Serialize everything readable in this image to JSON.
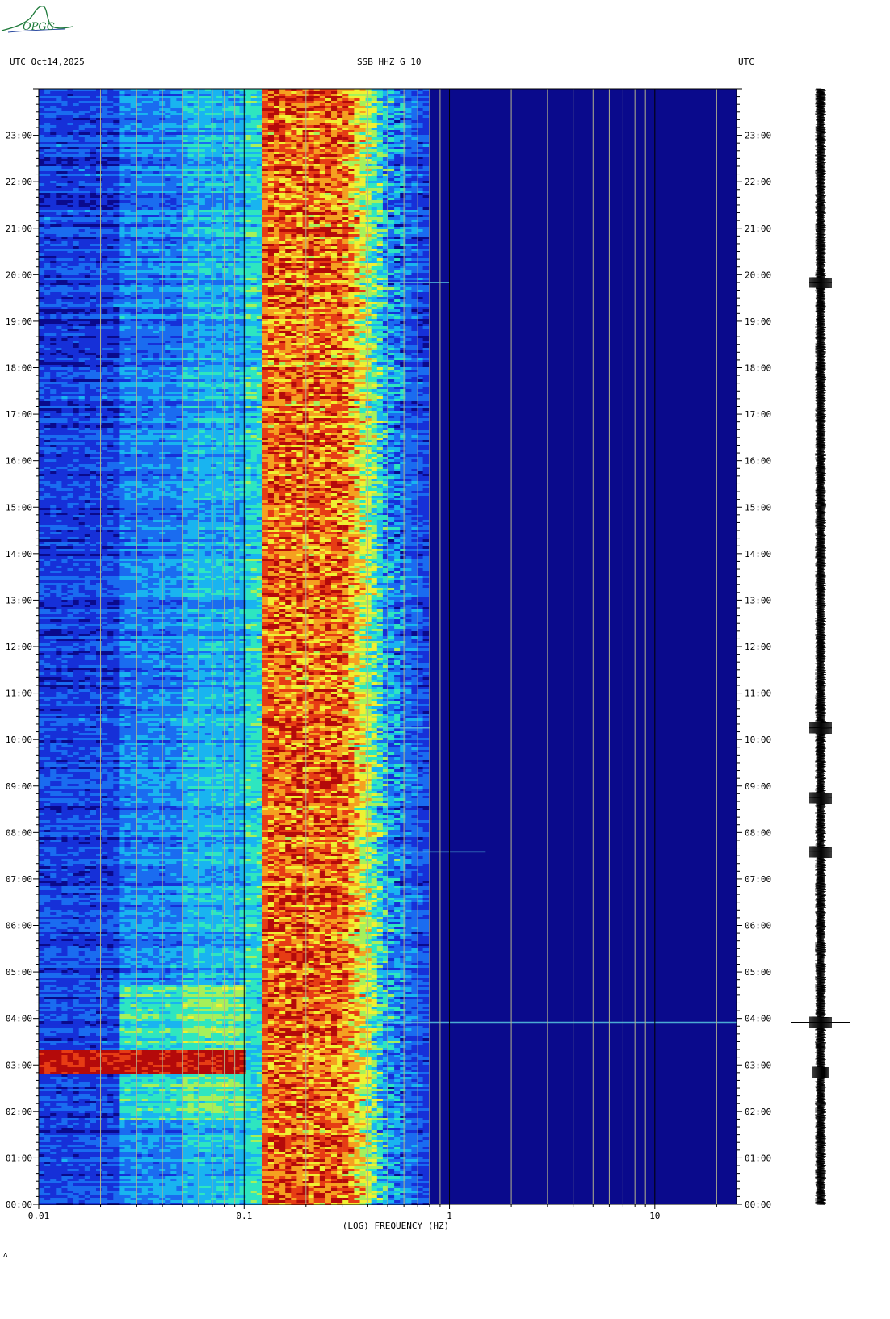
{
  "header": {
    "logo_text": "OPGC",
    "left_label": "UTC  Oct14,2025",
    "center_label": "SSB HHZ G 10",
    "right_label": "UTC"
  },
  "colors": {
    "background": "#ffffff",
    "colormap": [
      "#0a0a8c",
      "#1630d8",
      "#1a6cf0",
      "#19b4f0",
      "#2ee6c0",
      "#a6f05a",
      "#f0f032",
      "#f5a020",
      "#e63c14",
      "#b40a0a"
    ],
    "gridline": "#b4b48c",
    "decade_line": "#000000",
    "seismogram": "#000000"
  },
  "chart_data": {
    "type": "heatmap",
    "title": "SSB HHZ G 10",
    "xlabel": "(LOG) FREQUENCY (HZ)",
    "ylabel": "UTC",
    "x_scale": "log",
    "xlim": [
      0.01,
      25
    ],
    "x_ticks": [
      "0.01",
      "0.1",
      "1",
      "10"
    ],
    "x_tick_values": [
      0.01,
      0.1,
      1,
      10
    ],
    "x_gridlines": [
      0.02,
      0.03,
      0.04,
      0.05,
      0.06,
      0.07,
      0.08,
      0.09,
      0.2,
      0.3,
      0.4,
      0.5,
      0.6,
      0.7,
      0.8,
      0.9,
      2,
      3,
      4,
      5,
      6,
      7,
      8,
      9,
      20
    ],
    "ylim": [
      "00:00",
      "24:00"
    ],
    "y_ticks": [
      "00:00",
      "01:00",
      "02:00",
      "03:00",
      "04:00",
      "05:00",
      "06:00",
      "07:00",
      "08:00",
      "09:00",
      "10:00",
      "11:00",
      "12:00",
      "13:00",
      "14:00",
      "15:00",
      "16:00",
      "17:00",
      "18:00",
      "19:00",
      "20:00",
      "21:00",
      "22:00",
      "23:00"
    ],
    "microseism_band_hz": [
      0.13,
      0.3
    ],
    "events": [
      {
        "time": "02:50-03:20",
        "f_max_hz": 0.1,
        "level": "max"
      },
      {
        "time": "03:55",
        "f_max_hz": 25,
        "level": "low"
      },
      {
        "time": "07:35",
        "f_max_hz": 1.5,
        "level": "low"
      },
      {
        "time": "08:45",
        "f_max_hz": 0.5,
        "level": "low"
      },
      {
        "time": "10:15",
        "f_max_hz": 0.8,
        "level": "low"
      },
      {
        "time": "19:50",
        "f_max_hz": 1.0,
        "level": "low"
      }
    ],
    "grid": true,
    "seismogram_trace": true
  },
  "footer": {
    "corner_mark": "ʌ"
  }
}
